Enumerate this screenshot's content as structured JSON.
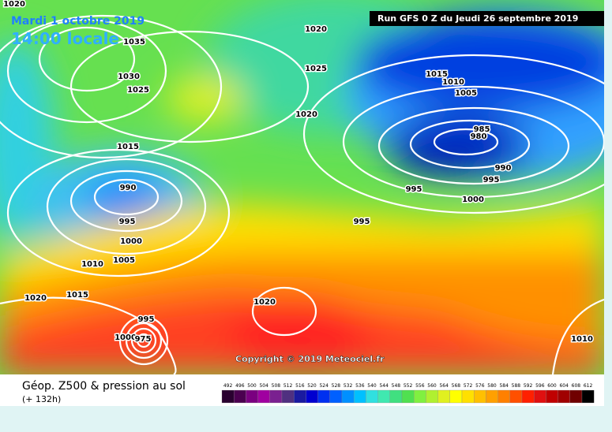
{
  "header": {
    "date": "Mardi 1 octobre 2019",
    "time": "14:00 locale",
    "run": "Run GFS 0 Z du Jeudi 26 septembre 2019"
  },
  "isobar_labels": [
    1020,
    1035,
    1030,
    1025,
    1020,
    1025,
    1020,
    1015,
    1015,
    1010,
    1005,
    985,
    980,
    990,
    995,
    995,
    1000,
    995,
    990,
    995,
    1000,
    1005,
    1010,
    1020,
    1015,
    1020,
    1010,
    995,
    1000,
    975
  ],
  "copyright": "Copyright © 2019 Meteociel.fr",
  "footer": {
    "title": "Géop. Z500 & pression au sol",
    "subtitle": "(+ 132h)"
  },
  "scale": {
    "ticks": [
      492,
      496,
      500,
      504,
      508,
      512,
      516,
      520,
      524,
      528,
      532,
      536,
      540,
      544,
      548,
      552,
      556,
      560,
      564,
      568,
      572,
      576,
      580,
      584,
      588,
      592,
      596,
      600,
      604,
      608,
      612
    ],
    "colors": [
      "#2a0030",
      "#4b0050",
      "#7a0080",
      "#a000a0",
      "#7a2090",
      "#503080",
      "#1a1aa0",
      "#0000d0",
      "#0030f0",
      "#0060ff",
      "#0090ff",
      "#00c0ff",
      "#30e0e0",
      "#40e8b0",
      "#40e080",
      "#50e050",
      "#80f040",
      "#b0f030",
      "#e0f020",
      "#ffff00",
      "#ffe000",
      "#ffc000",
      "#ffa000",
      "#ff8000",
      "#ff5000",
      "#ff2000",
      "#e01010",
      "#c00000",
      "#a00000",
      "#700000",
      "#000000"
    ]
  }
}
